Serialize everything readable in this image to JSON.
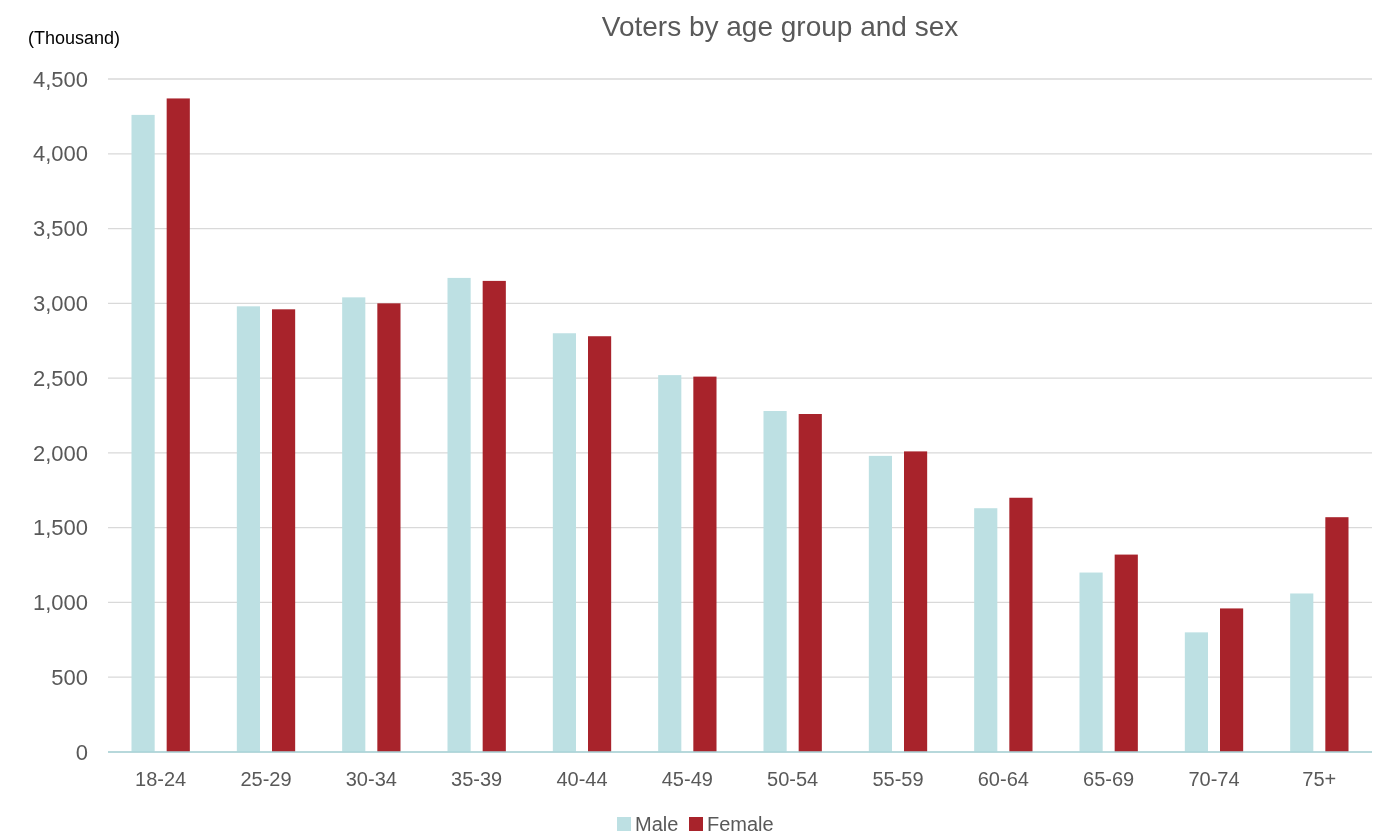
{
  "chart_data": {
    "type": "bar",
    "title": "Voters by age group and sex",
    "ylabel": "(Thousand)",
    "categories": [
      "18-24",
      "25-29",
      "30-34",
      "35-39",
      "40-44",
      "45-49",
      "50-54",
      "55-59",
      "60-64",
      "65-69",
      "70-74",
      "75+"
    ],
    "series": [
      {
        "name": "Male",
        "color": "#bde0e3",
        "values": [
          4260,
          2980,
          3040,
          3170,
          2800,
          2520,
          2280,
          1980,
          1630,
          1200,
          800,
          1060
        ]
      },
      {
        "name": "Female",
        "color": "#a8232b",
        "values": [
          4370,
          2960,
          3000,
          3150,
          2780,
          2510,
          2260,
          2010,
          1700,
          1320,
          960,
          1570
        ]
      }
    ],
    "ylim": [
      0,
      4500
    ],
    "yticks": [
      {
        "value": 0,
        "label": "0"
      },
      {
        "value": 500,
        "label": "500"
      },
      {
        "value": 1000,
        "label": "1,000"
      },
      {
        "value": 1500,
        "label": "1,500"
      },
      {
        "value": 2000,
        "label": "2,000"
      },
      {
        "value": 2500,
        "label": "2,500"
      },
      {
        "value": 3000,
        "label": "3,000"
      },
      {
        "value": 3500,
        "label": "3,500"
      },
      {
        "value": 4000,
        "label": "4,000"
      },
      {
        "value": 4500,
        "label": "4,500"
      }
    ],
    "grid": "y",
    "legend": "bottom"
  }
}
